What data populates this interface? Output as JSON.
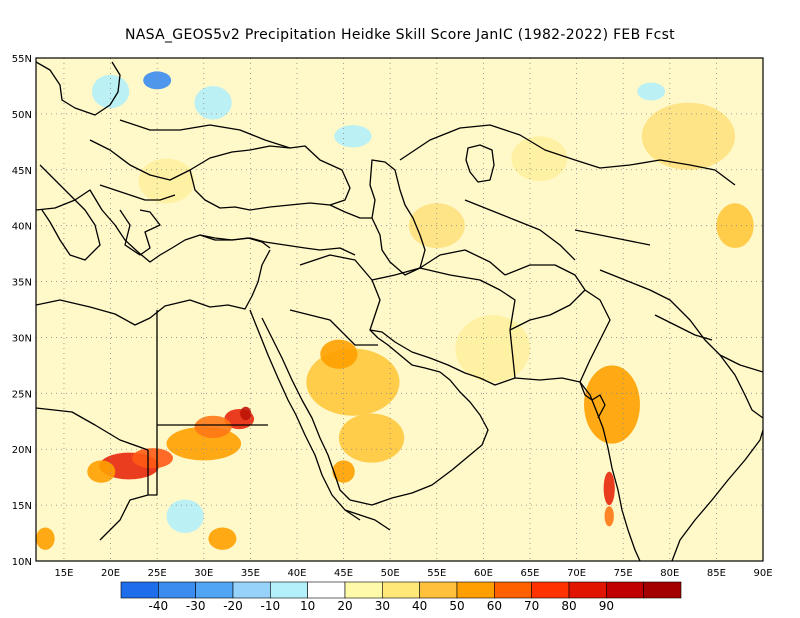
{
  "title": "NASA_GEOS5v2  Precipitation Heidke Skill Score JanIC (1982-2022) FEB Fcst",
  "map": {
    "lon_min": 12,
    "lon_max": 90,
    "lat_min": 10,
    "lat_max": 55,
    "lat_ticks": [
      {
        "value": 10,
        "label": "10N"
      },
      {
        "value": 15,
        "label": "15N"
      },
      {
        "value": 20,
        "label": "20N"
      },
      {
        "value": 25,
        "label": "25N"
      },
      {
        "value": 30,
        "label": "30N"
      },
      {
        "value": 35,
        "label": "35N"
      },
      {
        "value": 40,
        "label": "40N"
      },
      {
        "value": 45,
        "label": "45N"
      },
      {
        "value": 50,
        "label": "50N"
      },
      {
        "value": 55,
        "label": "55N"
      }
    ],
    "lon_ticks": [
      {
        "value": 15,
        "label": "15E"
      },
      {
        "value": 20,
        "label": "20E"
      },
      {
        "value": 25,
        "label": "25E"
      },
      {
        "value": 30,
        "label": "30E"
      },
      {
        "value": 35,
        "label": "35E"
      },
      {
        "value": 40,
        "label": "40E"
      },
      {
        "value": 45,
        "label": "45E"
      },
      {
        "value": 50,
        "label": "50E"
      },
      {
        "value": 55,
        "label": "55E"
      },
      {
        "value": 60,
        "label": "60E"
      },
      {
        "value": 65,
        "label": "65E"
      },
      {
        "value": 70,
        "label": "70E"
      },
      {
        "value": 75,
        "label": "75E"
      },
      {
        "value": 80,
        "label": "80E"
      },
      {
        "value": 85,
        "label": "85E"
      },
      {
        "value": 90,
        "label": "90E"
      }
    ],
    "skill_patches": [
      {
        "lon": 22,
        "lat": 18.5,
        "rx": 3.2,
        "ry": 1.2,
        "color": "#e8280c"
      },
      {
        "lon": 24.5,
        "lat": 19.2,
        "rx": 2.2,
        "ry": 0.9,
        "color": "#ff5a14"
      },
      {
        "lon": 30,
        "lat": 20.5,
        "rx": 4,
        "ry": 1.5,
        "color": "#ffa000"
      },
      {
        "lon": 33.8,
        "lat": 22.7,
        "rx": 1.6,
        "ry": 0.9,
        "color": "#e8280c"
      },
      {
        "lon": 34.5,
        "lat": 23.2,
        "rx": 0.6,
        "ry": 0.6,
        "color": "#be1408"
      },
      {
        "lon": 31,
        "lat": 22,
        "rx": 2,
        "ry": 1,
        "color": "#ff7814"
      },
      {
        "lon": 19,
        "lat": 18,
        "rx": 1.5,
        "ry": 1,
        "color": "#ffa000"
      },
      {
        "lon": 46,
        "lat": 26,
        "rx": 5,
        "ry": 3,
        "color": "#ffc83c"
      },
      {
        "lon": 44.5,
        "lat": 28.5,
        "rx": 2,
        "ry": 1.3,
        "color": "#ffa000"
      },
      {
        "lon": 48,
        "lat": 21,
        "rx": 3.5,
        "ry": 2.2,
        "color": "#ffc83c"
      },
      {
        "lon": 45,
        "lat": 18,
        "rx": 1.2,
        "ry": 1,
        "color": "#ffa000"
      },
      {
        "lon": 73.8,
        "lat": 24,
        "rx": 3,
        "ry": 3.5,
        "color": "#ffa000"
      },
      {
        "lon": 73.5,
        "lat": 16.5,
        "rx": 0.6,
        "ry": 1.5,
        "color": "#e8280c"
      },
      {
        "lon": 73.5,
        "lat": 14,
        "rx": 0.5,
        "ry": 0.9,
        "color": "#ff7814"
      },
      {
        "lon": 87,
        "lat": 40,
        "rx": 2,
        "ry": 2,
        "color": "#ffc83c"
      },
      {
        "lon": 66,
        "lat": 46,
        "rx": 3,
        "ry": 2,
        "color": "#fff0a0"
      },
      {
        "lon": 82,
        "lat": 48,
        "rx": 5,
        "ry": 3,
        "color": "#ffe080"
      },
      {
        "lon": 13,
        "lat": 12,
        "rx": 1,
        "ry": 1,
        "color": "#ffa000"
      },
      {
        "lon": 26,
        "lat": 44,
        "rx": 3,
        "ry": 2,
        "color": "#fff0a0"
      },
      {
        "lon": 61,
        "lat": 29,
        "rx": 4,
        "ry": 3,
        "color": "#fff0a0"
      },
      {
        "lon": 55,
        "lat": 40,
        "rx": 3,
        "ry": 2,
        "color": "#ffe080"
      },
      {
        "lon": 32,
        "lat": 12,
        "rx": 1.5,
        "ry": 1,
        "color": "#ffa000"
      },
      {
        "lon": 25,
        "lat": 53,
        "rx": 1.5,
        "ry": 0.8,
        "color": "#3c8cf0"
      },
      {
        "lon": 20,
        "lat": 52,
        "rx": 2,
        "ry": 1.5,
        "color": "#b4f0fa"
      },
      {
        "lon": 31,
        "lat": 51,
        "rx": 2,
        "ry": 1.5,
        "color": "#b4f0fa"
      },
      {
        "lon": 28,
        "lat": 14,
        "rx": 2,
        "ry": 1.5,
        "color": "#b4f0fa"
      },
      {
        "lon": 46,
        "lat": 48,
        "rx": 2,
        "ry": 1,
        "color": "#b4f0fa"
      },
      {
        "lon": 78,
        "lat": 52,
        "rx": 1.5,
        "ry": 0.8,
        "color": "#b4f0fa"
      }
    ]
  },
  "colorbar": {
    "levels": [
      {
        "color": "#1e6eeb",
        "label": ""
      },
      {
        "color": "#3c8cf0",
        "label": "-40"
      },
      {
        "color": "#50a5f5",
        "label": "-30"
      },
      {
        "color": "#96d2fa",
        "label": "-20"
      },
      {
        "color": "#b4f0fa",
        "label": "-10"
      },
      {
        "color": "#ffffff",
        "label": "10"
      },
      {
        "color": "#fffaaa",
        "label": "20"
      },
      {
        "color": "#ffe878",
        "label": "30"
      },
      {
        "color": "#ffc03c",
        "label": "40"
      },
      {
        "color": "#ffa000",
        "label": "50"
      },
      {
        "color": "#ff6000",
        "label": "60"
      },
      {
        "color": "#ff3200",
        "label": "70"
      },
      {
        "color": "#e11400",
        "label": "80"
      },
      {
        "color": "#c00000",
        "label": "90"
      },
      {
        "color": "#a50000",
        "label": ""
      }
    ]
  }
}
